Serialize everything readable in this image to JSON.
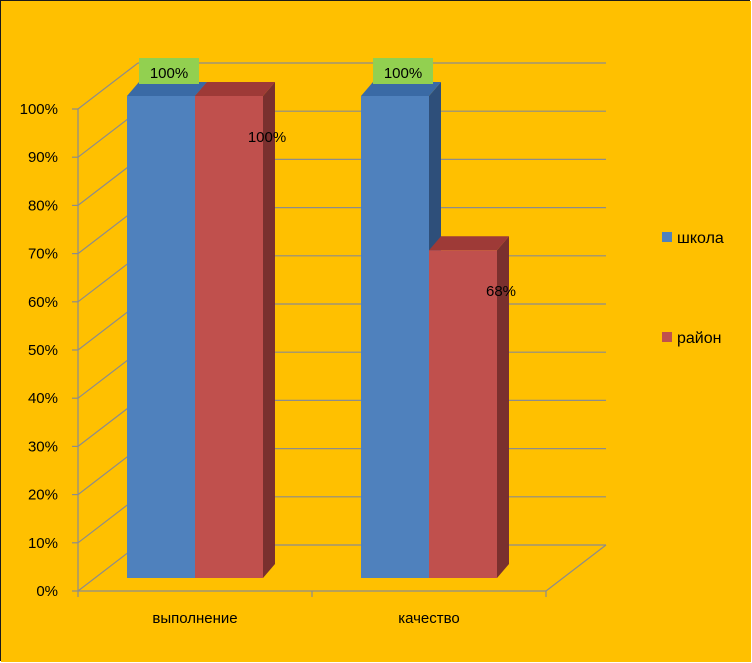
{
  "colors": {
    "background": "#FFC000",
    "grid": "#8C8C8C",
    "label_highlight": "#92D050"
  },
  "chart_data": {
    "type": "bar",
    "categories": [
      "выполнение",
      "качество"
    ],
    "series": [
      {
        "name": "школа",
        "values": [
          100,
          100
        ],
        "color": "#4F81BD",
        "top": "#3A6AA5",
        "side": "#2E4F7A"
      },
      {
        "name": "район",
        "values": [
          100,
          68
        ],
        "color": "#C0504D",
        "top": "#9E3A37",
        "side": "#7A302E"
      }
    ],
    "data_labels": [
      [
        "100%",
        "100%"
      ],
      [
        "100%",
        "68%"
      ]
    ],
    "y_ticks": [
      "0%",
      "10%",
      "20%",
      "30%",
      "40%",
      "50%",
      "60%",
      "70%",
      "80%",
      "90%",
      "100%"
    ],
    "ylim": [
      0,
      100
    ],
    "title": "",
    "xlabel": "",
    "ylabel": "",
    "grid": true,
    "legend_position": "right"
  }
}
